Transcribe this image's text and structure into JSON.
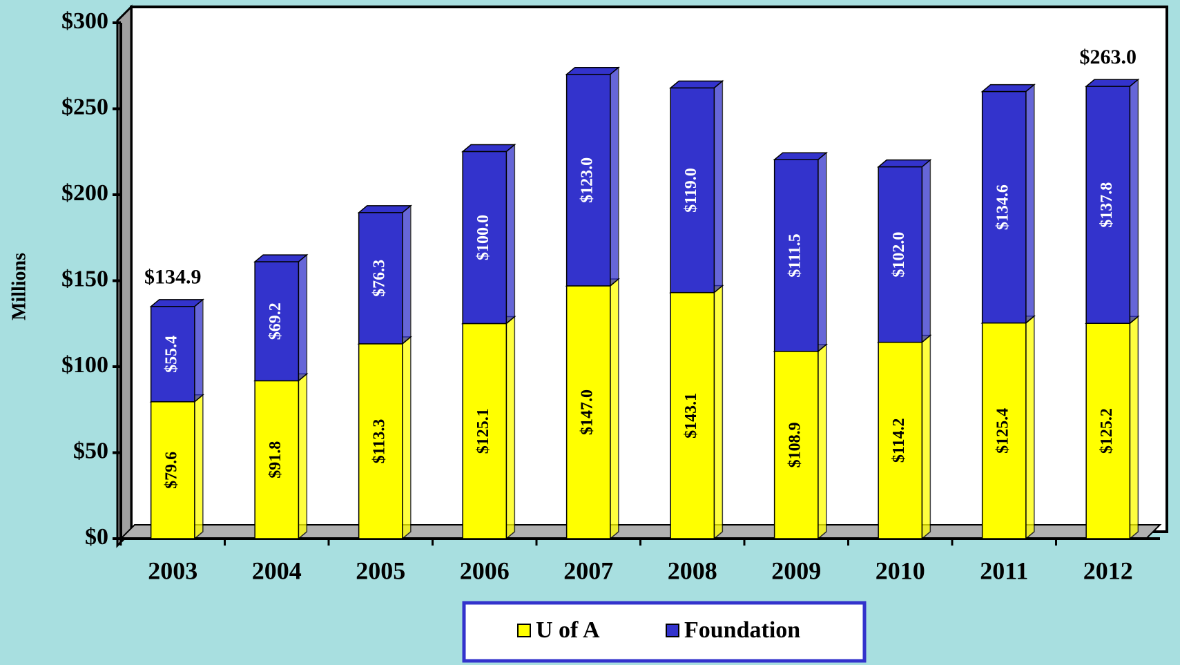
{
  "chart_data": {
    "type": "stacked_bar",
    "ylabel": "Millions",
    "categories": [
      "2003",
      "2004",
      "2005",
      "2006",
      "2007",
      "2008",
      "2009",
      "2010",
      "2011",
      "2012"
    ],
    "series": [
      {
        "name": "U of A",
        "color": "#ffff00",
        "values": [
          79.6,
          91.8,
          113.3,
          125.1,
          147.0,
          143.1,
          108.9,
          114.2,
          125.4,
          125.2
        ],
        "value_labels": [
          "$79.6",
          "$91.8",
          "$113.3",
          "$125.1",
          "$147.0",
          "$143.1",
          "$108.9",
          "$114.2",
          "$125.4",
          "$125.2"
        ]
      },
      {
        "name": "Foundation",
        "color": "#3333cc",
        "values": [
          55.4,
          69.2,
          76.3,
          100.0,
          123.0,
          119.0,
          111.5,
          102.0,
          134.6,
          137.8
        ],
        "value_labels": [
          "$55.4",
          "$69.2",
          "$76.3",
          "$100.0",
          "$123.0",
          "$119.0",
          "$111.5",
          "$102.0",
          "$134.6",
          "$137.8"
        ]
      }
    ],
    "total_labels": [
      "$134.9",
      null,
      null,
      null,
      null,
      null,
      null,
      null,
      null,
      "$263.0"
    ],
    "ylim": [
      0,
      300
    ],
    "yticks": [
      {
        "value": 0,
        "label": "$0"
      },
      {
        "value": 50,
        "label": "$50"
      },
      {
        "value": 100,
        "label": "$100"
      },
      {
        "value": 150,
        "label": "$150"
      },
      {
        "value": 200,
        "label": "$200"
      },
      {
        "value": 250,
        "label": "$250"
      },
      {
        "value": 300,
        "label": "$300"
      }
    ],
    "legend": "bottom"
  }
}
